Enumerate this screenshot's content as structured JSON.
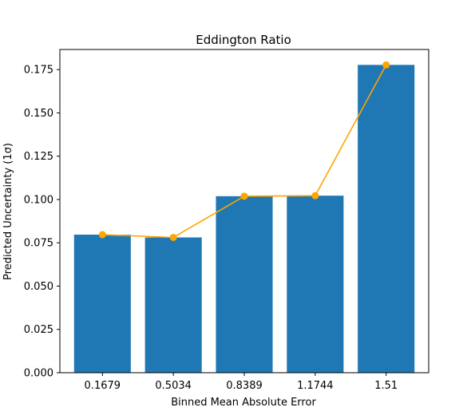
{
  "chart_data": {
    "type": "bar",
    "title": "Eddington Ratio",
    "xlabel": "Binned Mean Absolute Error",
    "ylabel": "Predicted Uncertainty (1σ)",
    "categories": [
      "0.1679",
      "0.5034",
      "0.8389",
      "1.1744",
      "1.51"
    ],
    "series": [
      {
        "kind": "bar",
        "values": [
          0.0797,
          0.0781,
          0.1019,
          0.1022,
          0.1777
        ]
      },
      {
        "kind": "line-with-markers",
        "values": [
          0.0797,
          0.0781,
          0.1019,
          0.1022,
          0.1777
        ]
      }
    ],
    "ylim": [
      0,
      0.1866
    ],
    "yticks": [
      "0.000",
      "0.025",
      "0.050",
      "0.075",
      "0.100",
      "0.125",
      "0.150",
      "0.175"
    ],
    "colors": {
      "bar": "#1f77b4",
      "line": "#ffa500"
    },
    "grid": false,
    "legend": "none"
  }
}
